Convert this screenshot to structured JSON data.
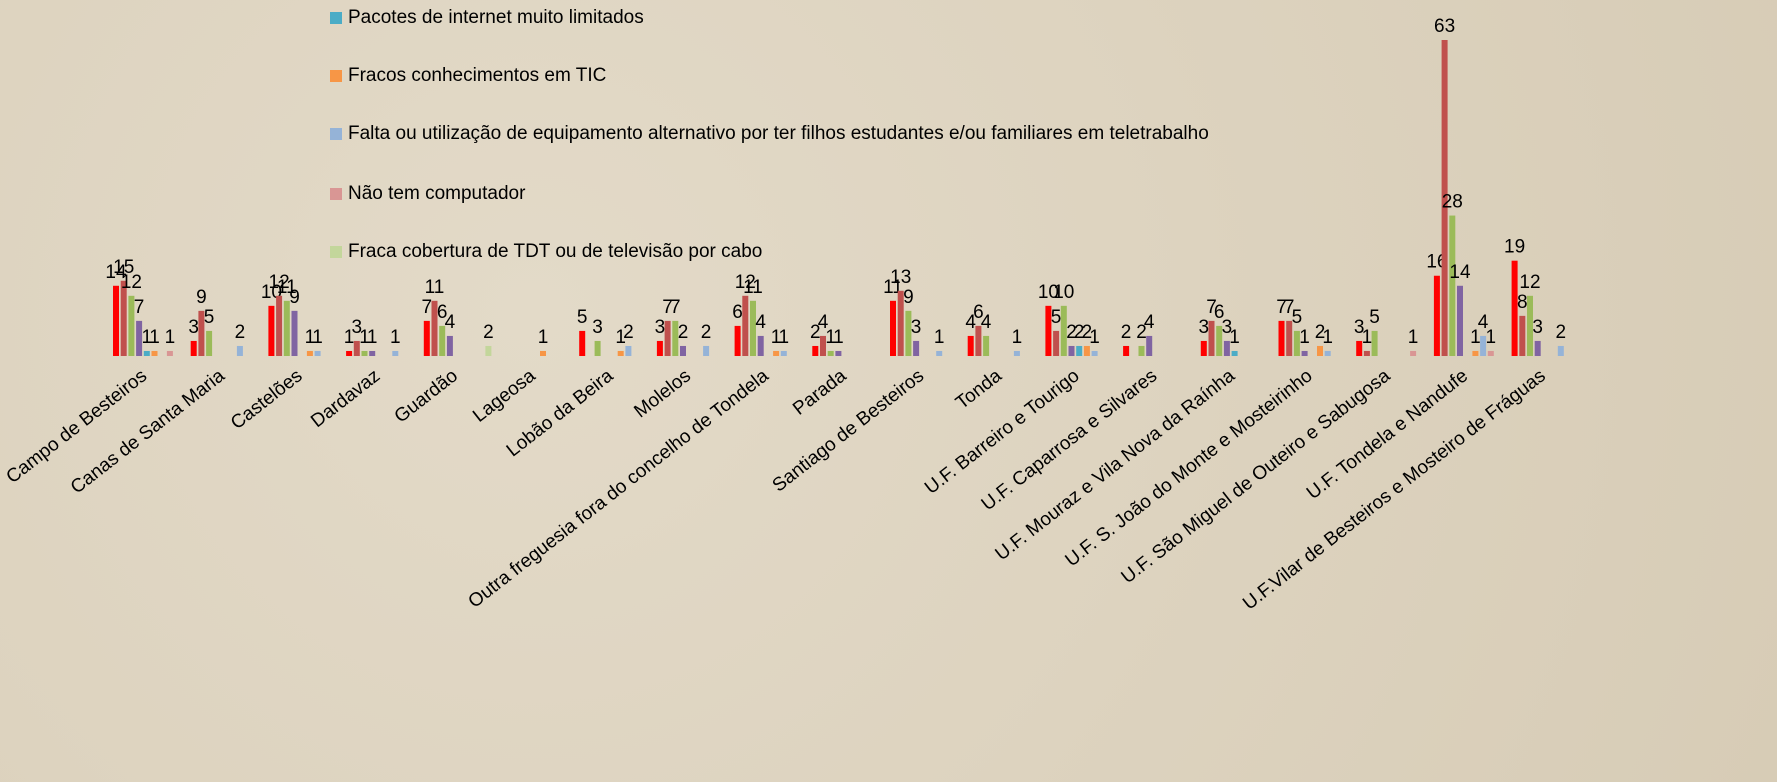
{
  "chart_data": {
    "type": "bar",
    "categories": [
      "Campo de Besteiros",
      "Canas de Santa Maria",
      "Castelões",
      "Dardavaz",
      "Guardão",
      "Lageosa",
      "Lobão da Beira",
      "Molelos",
      "Outra freguesia fora do concelho de Tondela",
      "Parada",
      "Santiago de Besteiros",
      "Tonda",
      "U.F. Barreiro e Tourigo",
      "U.F. Caparrosa e Silvares",
      "U.F. Mouraz e Vila Nova da Raínha",
      "U.F.  S. João do Monte e Mosteirinho",
      "U.F.  São Miguel de Outeiro e Sabugosa",
      "U.F. Tondela e Nandufe",
      "U.F.Vilar de Besteiros e Mosteiro de Fráguas"
    ],
    "series": [
      {
        "color": "#ff0000",
        "values": [
          14,
          3,
          10,
          1,
          7,
          null,
          5,
          3,
          6,
          2,
          11,
          4,
          10,
          2,
          3,
          7,
          3,
          16,
          19
        ]
      },
      {
        "color": "#c0504d",
        "values": [
          15,
          9,
          12,
          3,
          11,
          null,
          null,
          7,
          12,
          4,
          13,
          6,
          5,
          null,
          7,
          7,
          1,
          63,
          8
        ]
      },
      {
        "color": "#9bbb59",
        "values": [
          12,
          5,
          11,
          1,
          6,
          null,
          3,
          7,
          11,
          1,
          9,
          4,
          10,
          2,
          6,
          5,
          5,
          28,
          12
        ]
      },
      {
        "color": "#8064a2",
        "values": [
          7,
          null,
          9,
          1,
          4,
          null,
          null,
          2,
          4,
          1,
          3,
          null,
          2,
          4,
          3,
          1,
          null,
          14,
          3
        ]
      },
      {
        "name": "Pacotes de internet muito limitados",
        "color": "#4bacc6",
        "values": [
          1,
          null,
          null,
          null,
          null,
          null,
          null,
          null,
          null,
          null,
          null,
          null,
          2,
          null,
          1,
          null,
          null,
          null,
          null
        ]
      },
      {
        "name": "Fracos conhecimentos em TIC",
        "color": "#f79646",
        "values": [
          1,
          null,
          1,
          null,
          null,
          1,
          1,
          null,
          1,
          null,
          null,
          null,
          2,
          null,
          null,
          2,
          null,
          1,
          null
        ]
      },
      {
        "name": "Falta ou utilização de equipamento alternativo por ter filhos estudantes e/ou familiares em teletrabalho",
        "color": "#95b3d7",
        "values": [
          null,
          2,
          1,
          1,
          null,
          null,
          2,
          2,
          1,
          null,
          1,
          1,
          1,
          null,
          null,
          1,
          null,
          4,
          2
        ]
      },
      {
        "name": "Não tem computador",
        "color": "#d99694",
        "values": [
          1,
          null,
          null,
          null,
          null,
          null,
          null,
          null,
          null,
          null,
          null,
          null,
          null,
          null,
          null,
          null,
          1,
          1,
          null
        ]
      },
      {
        "name": "Fraca cobertura de TDT ou de televisão por cabo",
        "color": "#c3d69b",
        "values": [
          null,
          null,
          null,
          null,
          2,
          null,
          null,
          null,
          null,
          null,
          null,
          null,
          null,
          null,
          null,
          null,
          null,
          null,
          null
        ]
      }
    ]
  }
}
